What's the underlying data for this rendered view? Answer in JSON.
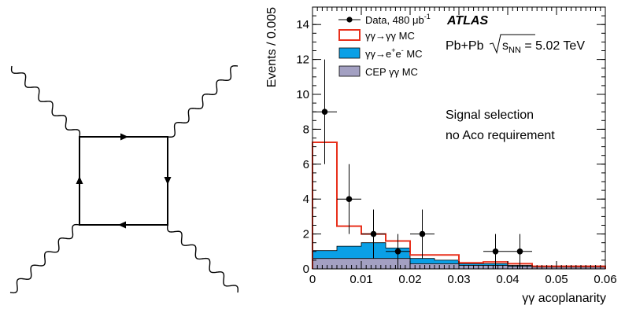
{
  "diagram": {
    "description_free": true
  },
  "chart_data": {
    "type": "histogram",
    "experiment": "ATLAS",
    "collision_label": "Pb+Pb",
    "sqrt_symbol": "s",
    "sqrt_subscript": "NN",
    "energy_text": " = 5.02 TeV",
    "selection_lines": [
      "Signal selection",
      "no Aco requirement"
    ],
    "xlabel": "γγ acoplanarity",
    "ylabel": "Events / 0.005",
    "xlim": [
      0,
      0.06
    ],
    "ylim": [
      0,
      15
    ],
    "x_major_ticks": [
      0,
      0.01,
      0.02,
      0.03,
      0.04,
      0.05,
      0.06
    ],
    "x_tick_labels": [
      "0",
      "0.01",
      "0.02",
      "0.03",
      "0.04",
      "0.05",
      "0.06"
    ],
    "y_major_ticks": [
      0,
      2,
      4,
      6,
      8,
      10,
      12,
      14
    ],
    "y_tick_labels": [
      "0",
      "2",
      "4",
      "6",
      "8",
      "10",
      "12",
      "14"
    ],
    "bin_edges": [
      0,
      0.005,
      0.01,
      0.015,
      0.02,
      0.025,
      0.03,
      0.035,
      0.04,
      0.045,
      0.05,
      0.055,
      0.06
    ],
    "legend": {
      "data_label": "Data, 480 μb",
      "data_label_sup": "-1",
      "signal_label": "γγ→γγ MC",
      "ee_label_pre": "γγ→e",
      "ee_label_mid": "e",
      "ee_label_post": " MC",
      "ee_sup_plus": "+",
      "ee_sup_minus": "-",
      "cep_label": "CEP γγ MC"
    },
    "series": [
      {
        "key": "cep",
        "kind": "stacked-fill",
        "color": "#a3a0c2",
        "values": [
          0.6,
          0.6,
          0.6,
          0.6,
          0.3,
          0.3,
          0.2,
          0.2,
          0.15,
          0.1,
          0.1,
          0.1
        ]
      },
      {
        "key": "ee",
        "kind": "stacked-fill",
        "color": "#0aa0e6",
        "values": [
          0.45,
          0.7,
          0.9,
          0.6,
          0.3,
          0.2,
          0.1,
          0.1,
          0.05,
          0.05,
          0.05,
          0.05
        ]
      },
      {
        "key": "signal",
        "kind": "stacked-line",
        "color": "#e8301c",
        "values": [
          6.2,
          1.15,
          0.5,
          0.4,
          0.2,
          0.3,
          0.05,
          0.1,
          0.1,
          0.0,
          0.0,
          0.0
        ]
      }
    ],
    "data_points": [
      {
        "x": 0.0025,
        "y": 9,
        "yerr_low": 3.0,
        "yerr_high": 3.0
      },
      {
        "x": 0.0075,
        "y": 4,
        "yerr_low": 2.0,
        "yerr_high": 2.0
      },
      {
        "x": 0.0125,
        "y": 2,
        "yerr_low": 1.4,
        "yerr_high": 1.4
      },
      {
        "x": 0.0175,
        "y": 1,
        "yerr_low": 1.0,
        "yerr_high": 1.0
      },
      {
        "x": 0.0225,
        "y": 2,
        "yerr_low": 1.4,
        "yerr_high": 1.4
      },
      {
        "x": 0.0375,
        "y": 1,
        "yerr_low": 1.0,
        "yerr_high": 1.0
      },
      {
        "x": 0.0425,
        "y": 1,
        "yerr_low": 1.0,
        "yerr_high": 1.0
      }
    ]
  }
}
